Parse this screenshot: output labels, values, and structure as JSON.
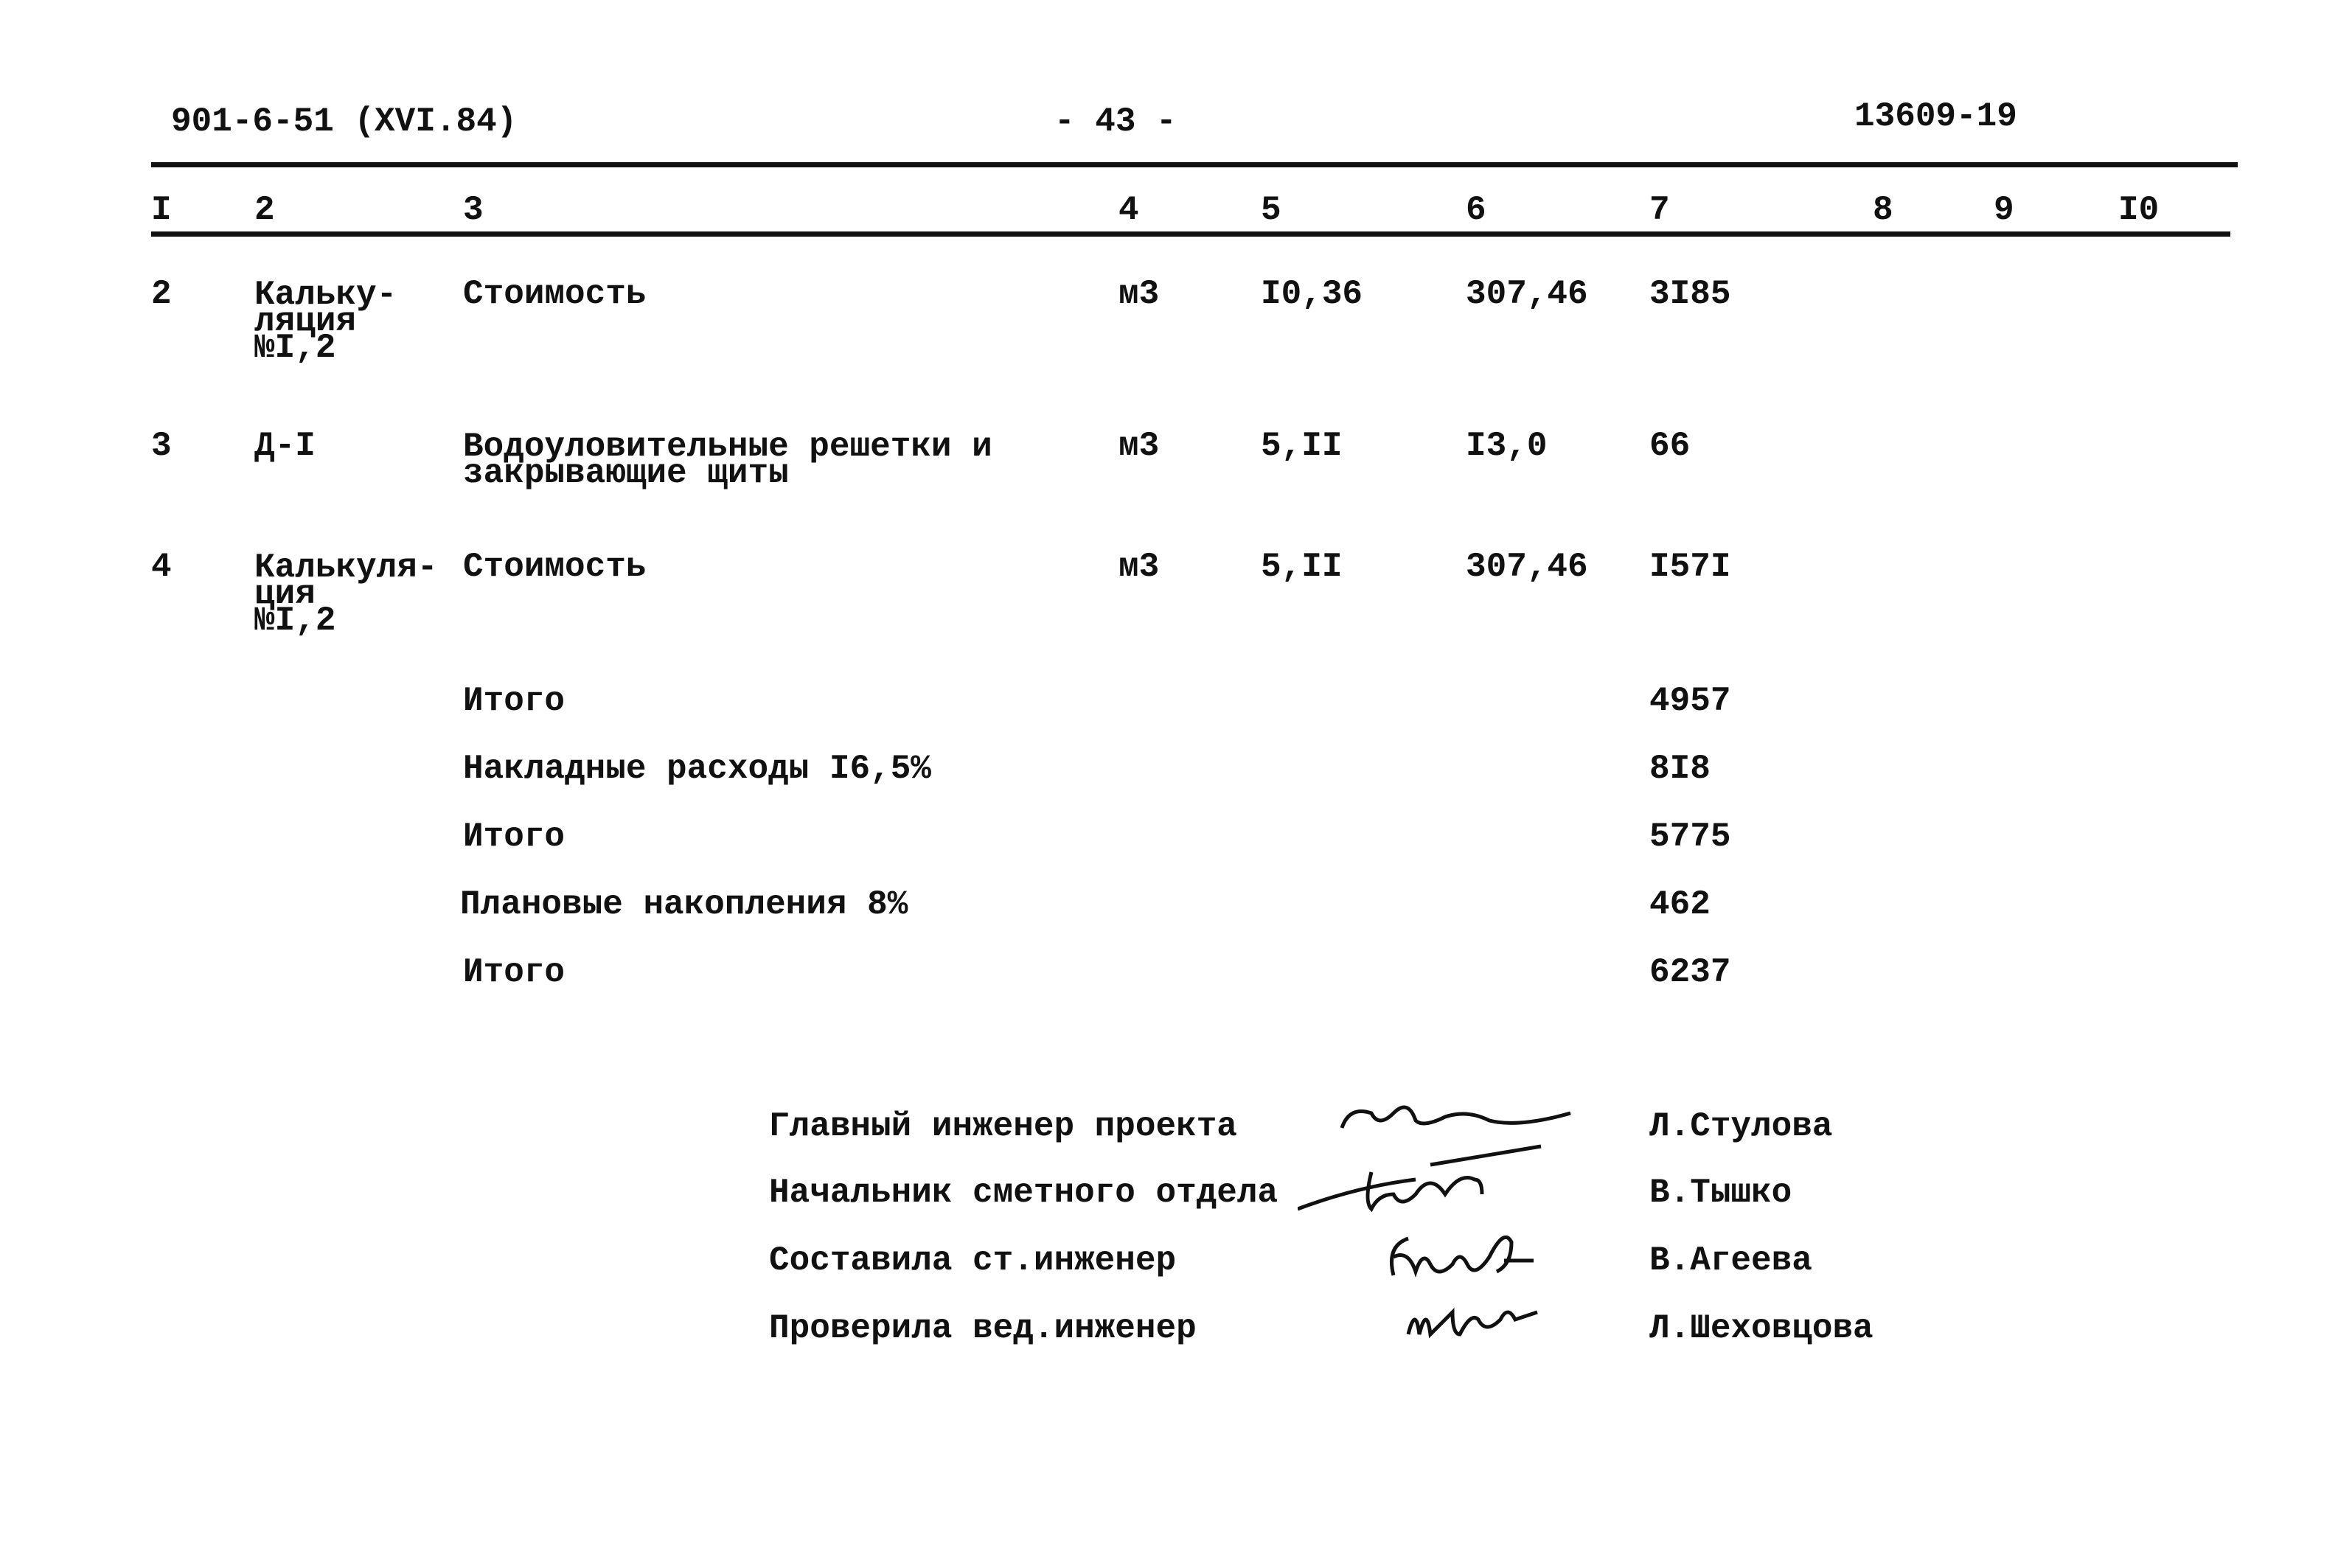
{
  "header": {
    "doc_code": "901-6-51 (XVI.84)",
    "page_number": "- 43 -",
    "sheet_number": "13609-19"
  },
  "columns": [
    "I",
    "2",
    "3",
    "4",
    "5",
    "6",
    "7",
    "8",
    "9",
    "I0"
  ],
  "rows": [
    {
      "num": "2",
      "basis": "Кальку-\nляция\n№I,2",
      "name": "Стоимость",
      "unit": "м3",
      "qty": "I0,36",
      "price": "307,46",
      "total": "3I85"
    },
    {
      "num": "3",
      "basis": "Д-I",
      "name": "Водоуловительные решетки и\nзакрывающие щиты",
      "unit": "м3",
      "qty": "5,II",
      "price": "I3,0",
      "total": "66"
    },
    {
      "num": "4",
      "basis": "Калькуля-\nция\n№I,2",
      "name": "Стоимость",
      "unit": "м3",
      "qty": "5,II",
      "price": "307,46",
      "total": "I57I"
    }
  ],
  "totals": [
    {
      "label": "Итого",
      "value": "4957"
    },
    {
      "label": "Накладные расходы I6,5%",
      "value": "8I8"
    },
    {
      "label": "Итого",
      "value": "5775"
    },
    {
      "label": "Плановые накопления 8%",
      "value": "462"
    },
    {
      "label": "Итого",
      "value": "6237"
    }
  ],
  "signatures": [
    {
      "role": "Главный инженер проекта",
      "name": "Л.Стулова",
      "signature": "Стулова"
    },
    {
      "role": "Начальник сметного отдела",
      "name": "В.Тышко",
      "signature": "Тышко"
    },
    {
      "role": "Составила ст.инженер",
      "name": "В.Агеева",
      "signature": "Агеева"
    },
    {
      "role": "Проверила вед.инженер",
      "name": "Л.Шеховцова",
      "signature": "Шех"
    }
  ]
}
